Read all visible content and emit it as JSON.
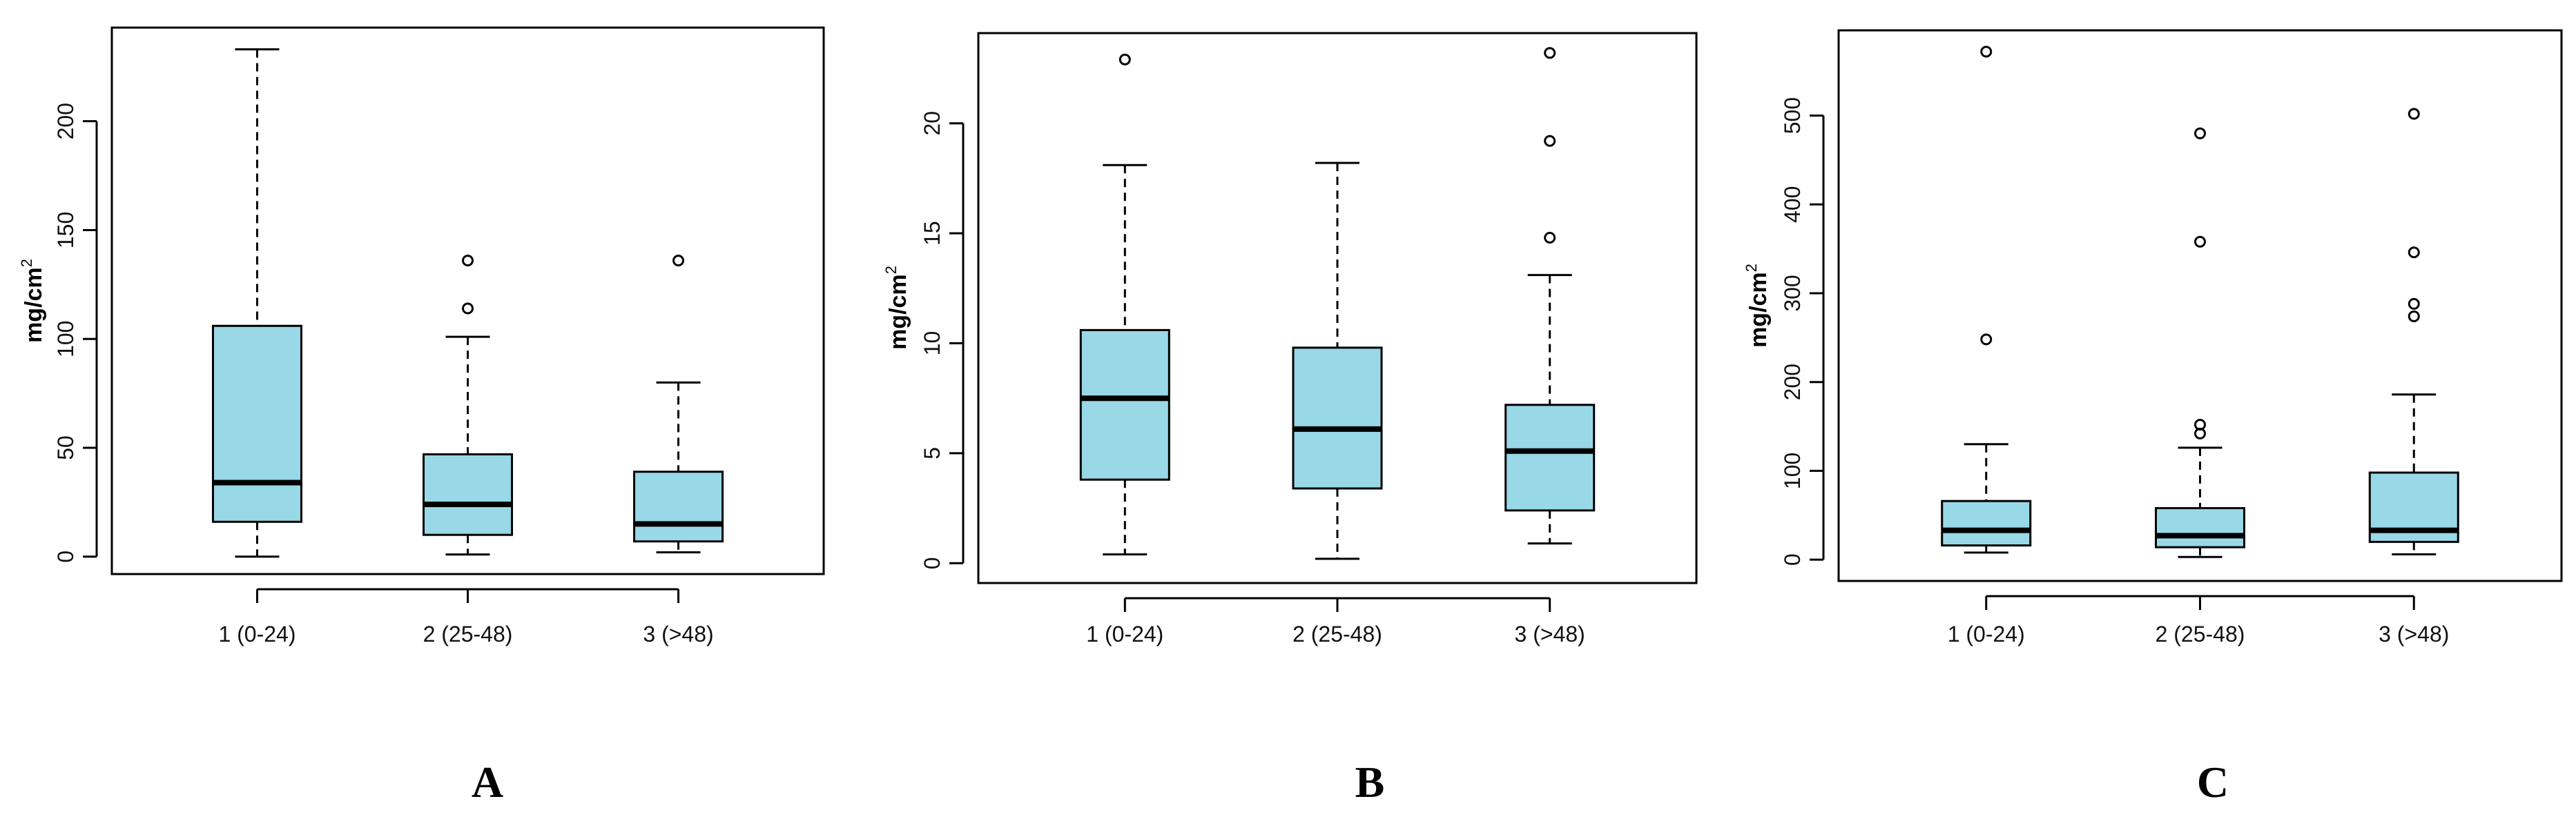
{
  "figure": {
    "colors": {
      "box_fill": "#99d8e6",
      "stroke": "#000000",
      "background": "#ffffff"
    }
  },
  "chart_data": [
    {
      "type": "box",
      "panel_label": "A",
      "ylabel": "mg/cm",
      "ylabel_superscript": "2",
      "categories": [
        "1 (0-24)",
        "2 (25-48)",
        "3 (>48)"
      ],
      "yticks": [
        0,
        50,
        100,
        150,
        200
      ],
      "ylim": [
        -8,
        243
      ],
      "boxes": [
        {
          "whisker_low": 0,
          "q1": 16,
          "median": 34,
          "q3": 106,
          "whisker_high": 233,
          "outliers": []
        },
        {
          "whisker_low": 1,
          "q1": 10,
          "median": 24,
          "q3": 47,
          "whisker_high": 101,
          "outliers": [
            114,
            136
          ]
        },
        {
          "whisker_low": 2,
          "q1": 7,
          "median": 15,
          "q3": 39,
          "whisker_high": 80,
          "outliers": [
            136
          ]
        }
      ]
    },
    {
      "type": "box",
      "panel_label": "B",
      "ylabel": "mg/cm",
      "ylabel_superscript": "2",
      "categories": [
        "1 (0-24)",
        "2 (25-48)",
        "3 (>48)"
      ],
      "yticks": [
        0,
        5,
        10,
        15,
        20
      ],
      "ylim": [
        -0.9,
        24.1
      ],
      "boxes": [
        {
          "whisker_low": 0.4,
          "q1": 3.8,
          "median": 7.5,
          "q3": 10.6,
          "whisker_high": 18.1,
          "outliers": [
            22.9
          ]
        },
        {
          "whisker_low": 0.2,
          "q1": 3.4,
          "median": 6.1,
          "q3": 9.8,
          "whisker_high": 18.2,
          "outliers": []
        },
        {
          "whisker_low": 0.9,
          "q1": 2.4,
          "median": 5.1,
          "q3": 7.2,
          "whisker_high": 13.1,
          "outliers": [
            14.8,
            19.2,
            23.2
          ]
        }
      ]
    },
    {
      "type": "box",
      "panel_label": "C",
      "ylabel": "mg/cm",
      "ylabel_superscript": "2",
      "categories": [
        "1 (0-24)",
        "2 (25-48)",
        "3 (>48)"
      ],
      "yticks": [
        0,
        100,
        200,
        300,
        400,
        500
      ],
      "ylim": [
        -24,
        596
      ],
      "boxes": [
        {
          "whisker_low": 8,
          "q1": 16,
          "median": 33,
          "q3": 66,
          "whisker_high": 130,
          "outliers": [
            248,
            572
          ]
        },
        {
          "whisker_low": 3,
          "q1": 14,
          "median": 27,
          "q3": 58,
          "whisker_high": 126,
          "outliers": [
            142,
            152,
            358,
            480
          ]
        },
        {
          "whisker_low": 6,
          "q1": 20,
          "median": 33,
          "q3": 98,
          "whisker_high": 186,
          "outliers": [
            274,
            288,
            346,
            502
          ]
        }
      ]
    }
  ]
}
